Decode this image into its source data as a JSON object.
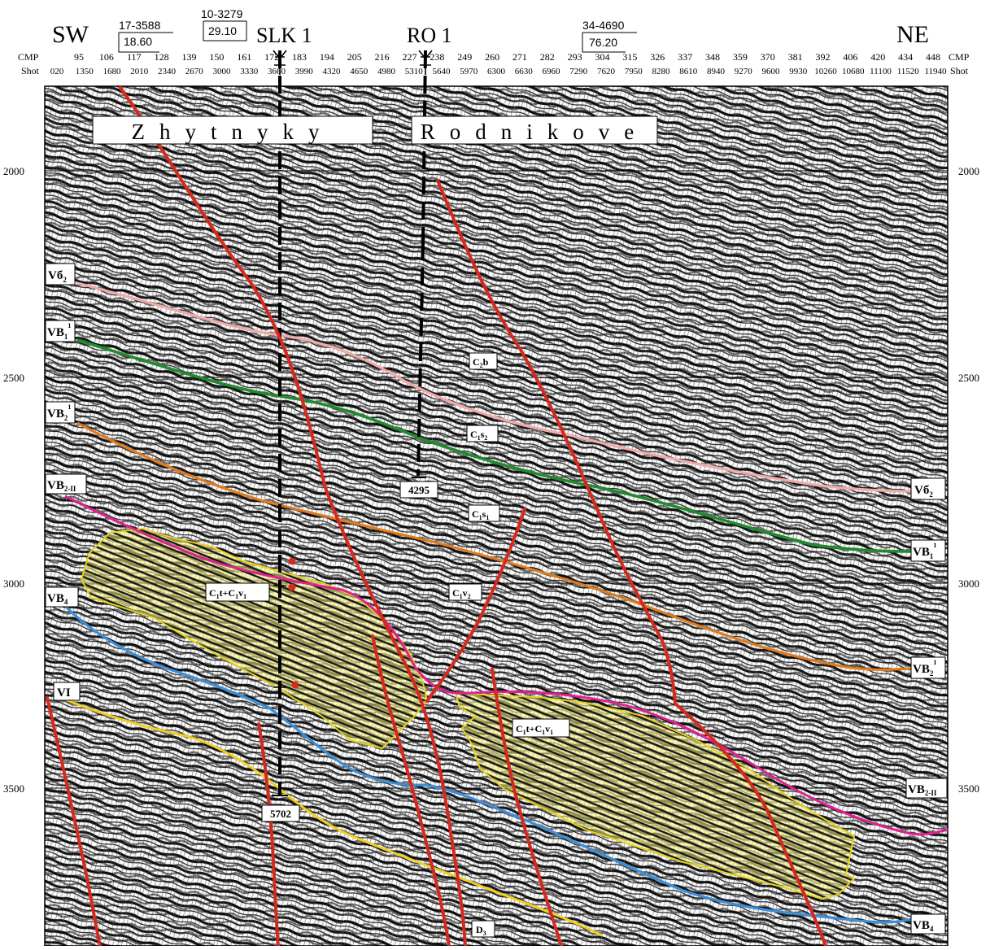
{
  "section": {
    "left_label": "SW",
    "right_label": "NE",
    "cmp_label": "CMP",
    "shot_label": "Shot",
    "cmp_ticks": [
      "95",
      "106",
      "117",
      "128",
      "139",
      "150",
      "161",
      "172",
      "183",
      "194",
      "205",
      "216",
      "227",
      "238",
      "249",
      "260",
      "271",
      "282",
      "293",
      "304",
      "315",
      "326",
      "337",
      "348",
      "359",
      "370",
      "381",
      "392",
      "406",
      "420",
      "434",
      "448"
    ],
    "shot_ticks": [
      "020",
      "1350",
      "1680",
      "2010",
      "2340",
      "2670",
      "3000",
      "3330",
      "3660",
      "3990",
      "4320",
      "4650",
      "4980",
      "5310",
      "5640",
      "5970",
      "6300",
      "6630",
      "6960",
      "7290",
      "7620",
      "7950",
      "8280",
      "8610",
      "8940",
      "9270",
      "9600",
      "9930",
      "10260",
      "10680",
      "11100",
      "11520",
      "11940"
    ],
    "time_ticks": [
      "2000",
      "2500",
      "3000",
      "3500"
    ],
    "colors": {
      "fault": "#d42a1e",
      "pink_horizon": "#f2aaa6",
      "green_horizon": "#1f8a2e",
      "orange_horizon": "#e07a1f",
      "magenta_horizon": "#e0208c",
      "blue_horizon": "#3a8fd8",
      "yellow_horizon": "#f0cf20",
      "reservoir_fill": "#f5f07a"
    }
  },
  "wells": [
    {
      "name": "17-3588",
      "value": "18.60"
    },
    {
      "name": "10-3279",
      "value": "29.10"
    },
    {
      "name": "SLK 1",
      "depth_label": "5702"
    },
    {
      "name": "RO 1",
      "depth_label": "4295"
    },
    {
      "name": "34-4690",
      "value": "76.20"
    }
  ],
  "areas": {
    "zhytnyky": "Zhytnyky",
    "rodnikove": "Rodnikove"
  },
  "horizon_labels": {
    "vb2_top_left": "Vб",
    "vb2_top_left_sub": "2",
    "vb1_left": "VB",
    "vb1_left_sub": "1",
    "vb1_left_sup": "1",
    "vb2_left": "VB",
    "vb2_left_sub": "2",
    "vb2_left_sup": "1",
    "vb2ii_left": "VB",
    "vb2ii_left_sub": "2-II",
    "vb4_left": "VB",
    "vb4_left_sub": "4",
    "vi_left": "VI",
    "vb6_right": "Vб",
    "vb6_right_sub": "2",
    "vb1_right": "VB",
    "vb1_right_sub": "1",
    "vb1_right_sup": "1",
    "vb2_right": "VB",
    "vb2_right_sub": "2",
    "vb2_right_sup": "1",
    "vb2ii_right": "VB",
    "vb2ii_right_sub": "2-II",
    "vb4_right": "VB",
    "vb4_right_sub": "4"
  },
  "strat_labels": {
    "c2b": "C",
    "c2b_sub": "2",
    "c2b_tail": "b",
    "c1s2": "C",
    "c1s2_sub": "1",
    "c1s2_tail": "s",
    "c1s2_tail_sub": "2",
    "c1s1": "C",
    "c1s1_sub": "1",
    "c1s1_tail": "s",
    "c1s1_tail_sub": "1",
    "c1v2": "C",
    "c1v2_sub": "1",
    "c1v2_tail": "v",
    "c1v2_tail_sub": "2",
    "reservoir1_a": "C",
    "reservoir1_a_sub": "1",
    "reservoir1_b": "t+C",
    "reservoir1_b_sub": "1",
    "reservoir1_c": "v",
    "reservoir1_c_sub": "1",
    "reservoir2_a": "C",
    "reservoir2_a_sub": "1",
    "reservoir2_b": "t+C",
    "reservoir2_b_sub": "1",
    "reservoir2_c": "v",
    "reservoir2_c_sub": "1",
    "d3": "D",
    "d3_sub": "3"
  }
}
